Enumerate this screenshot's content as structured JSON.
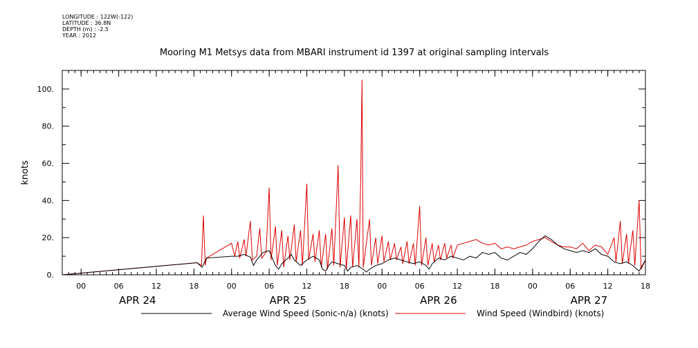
{
  "meta": {
    "longitude": "LONGITUDE : 122W(-122)",
    "latitude": "LATITUDE : 36.8N",
    "depth": "DEPTH (m) : -2.5",
    "year": "YEAR : 2012"
  },
  "chart_data": {
    "type": "line",
    "title": "Mooring M1 Metsys data from MBARI instrument id 1397 at original sampling intervals",
    "ylabel": "knots",
    "xlabel": "",
    "x_units": "hours since APR 24 00:00 (2012)",
    "xlim": [
      -3,
      90
    ],
    "ylim": [
      0,
      110
    ],
    "y_ticks": [
      0,
      20,
      40,
      60,
      80,
      100
    ],
    "y_tick_labels": [
      "0.",
      "20.",
      "40.",
      "60.",
      "80.",
      "100."
    ],
    "x_ticks": [
      0,
      6,
      12,
      18,
      24,
      30,
      36,
      42,
      48,
      54,
      60,
      66,
      72,
      78,
      84,
      90
    ],
    "x_tick_labels": [
      "00",
      "06",
      "12",
      "18",
      "00",
      "06",
      "12",
      "18",
      "00",
      "06",
      "12",
      "18",
      "00",
      "06",
      "12",
      "18"
    ],
    "day_labels": [
      {
        "x": 9,
        "label": "APR 24"
      },
      {
        "x": 33,
        "label": "APR 25"
      },
      {
        "x": 57,
        "label": "APR 26"
      },
      {
        "x": 81,
        "label": "APR 27"
      }
    ],
    "legend_placement": "bottom",
    "series": [
      {
        "name": "Average Wind Speed (Sonic-n/a) (knots)",
        "color": "#000000",
        "points": [
          [
            -3,
            0
          ],
          [
            18.5,
            6.5
          ],
          [
            19.3,
            4
          ],
          [
            20,
            9
          ],
          [
            24,
            10
          ],
          [
            25,
            10
          ],
          [
            26,
            11
          ],
          [
            27,
            9.5
          ],
          [
            27.5,
            5
          ],
          [
            28,
            8
          ],
          [
            29,
            12
          ],
          [
            30,
            13
          ],
          [
            30.5,
            9
          ],
          [
            31,
            5
          ],
          [
            31.5,
            3
          ],
          [
            32,
            6
          ],
          [
            33,
            9
          ],
          [
            33.5,
            11
          ],
          [
            34,
            8
          ],
          [
            35,
            5
          ],
          [
            36,
            8
          ],
          [
            37,
            10
          ],
          [
            38,
            8
          ],
          [
            38.5,
            3
          ],
          [
            39,
            2
          ],
          [
            39.5,
            5
          ],
          [
            40,
            7
          ],
          [
            41,
            6
          ],
          [
            42,
            5
          ],
          [
            42.5,
            2
          ],
          [
            43,
            4
          ],
          [
            44,
            5
          ],
          [
            45,
            3
          ],
          [
            45.5,
            1.5
          ],
          [
            46,
            3
          ],
          [
            47,
            5
          ],
          [
            48,
            6
          ],
          [
            49,
            8
          ],
          [
            50,
            9
          ],
          [
            51,
            8
          ],
          [
            52,
            7
          ],
          [
            53,
            6
          ],
          [
            54,
            7
          ],
          [
            55,
            5
          ],
          [
            55.5,
            3
          ],
          [
            56,
            6
          ],
          [
            57,
            9
          ],
          [
            58,
            8
          ],
          [
            59,
            10
          ],
          [
            60,
            9
          ],
          [
            61,
            8
          ],
          [
            62,
            10
          ],
          [
            63,
            9
          ],
          [
            64,
            12
          ],
          [
            65,
            11
          ],
          [
            66,
            12
          ],
          [
            67,
            9
          ],
          [
            68,
            8
          ],
          [
            69,
            10
          ],
          [
            70,
            12
          ],
          [
            71,
            11
          ],
          [
            72,
            14
          ],
          [
            73,
            18
          ],
          [
            74,
            21
          ],
          [
            75,
            19
          ],
          [
            76,
            16
          ],
          [
            77,
            14
          ],
          [
            78,
            13
          ],
          [
            79,
            12
          ],
          [
            80,
            13
          ],
          [
            81,
            12
          ],
          [
            82,
            14
          ],
          [
            83,
            11
          ],
          [
            84,
            10
          ],
          [
            85,
            7
          ],
          [
            86,
            6
          ],
          [
            87,
            7
          ],
          [
            88,
            5
          ],
          [
            89,
            2
          ],
          [
            90,
            8
          ]
        ]
      },
      {
        "name": "Wind Speed (Windbird) (knots)",
        "color": "#dd0000",
        "points": [
          [
            -3,
            0
          ],
          [
            18.5,
            6.5
          ],
          [
            19.2,
            5
          ],
          [
            19.5,
            32
          ],
          [
            19.8,
            5
          ],
          [
            20,
            9
          ],
          [
            24,
            17
          ],
          [
            24.5,
            10
          ],
          [
            25,
            18
          ],
          [
            25.3,
            9
          ],
          [
            26,
            19
          ],
          [
            26.3,
            10
          ],
          [
            27,
            29
          ],
          [
            27.3,
            8
          ],
          [
            28,
            10
          ],
          [
            28.5,
            25
          ],
          [
            28.8,
            9
          ],
          [
            29.5,
            12
          ],
          [
            30,
            47
          ],
          [
            30.3,
            8
          ],
          [
            31,
            26
          ],
          [
            31.3,
            5
          ],
          [
            32,
            24
          ],
          [
            32.3,
            4
          ],
          [
            33,
            21
          ],
          [
            33.3,
            8
          ],
          [
            34,
            27
          ],
          [
            34.3,
            7
          ],
          [
            35,
            24
          ],
          [
            35.3,
            5
          ],
          [
            36,
            49
          ],
          [
            36.3,
            8
          ],
          [
            37,
            22
          ],
          [
            37.3,
            7
          ],
          [
            38,
            24
          ],
          [
            38.3,
            4
          ],
          [
            39,
            22
          ],
          [
            39.3,
            3
          ],
          [
            40,
            25
          ],
          [
            40.3,
            5
          ],
          [
            41,
            59
          ],
          [
            41.3,
            4
          ],
          [
            42,
            31
          ],
          [
            42.3,
            3
          ],
          [
            43,
            32
          ],
          [
            43.3,
            4
          ],
          [
            44,
            30
          ],
          [
            44.3,
            4
          ],
          [
            44.6,
            53
          ],
          [
            44.8,
            105
          ],
          [
            45,
            4
          ],
          [
            46,
            30
          ],
          [
            46.3,
            5
          ],
          [
            47,
            20
          ],
          [
            47.3,
            6
          ],
          [
            48,
            21
          ],
          [
            48.3,
            7
          ],
          [
            49,
            18
          ],
          [
            49.3,
            8
          ],
          [
            50,
            17
          ],
          [
            50.3,
            8
          ],
          [
            51,
            15
          ],
          [
            51.3,
            6
          ],
          [
            52,
            18
          ],
          [
            52.3,
            6
          ],
          [
            53,
            17
          ],
          [
            53.3,
            5
          ],
          [
            54,
            37
          ],
          [
            54.3,
            5
          ],
          [
            55,
            20
          ],
          [
            55.3,
            5
          ],
          [
            56,
            17
          ],
          [
            56.3,
            7
          ],
          [
            57,
            16
          ],
          [
            57.3,
            8
          ],
          [
            58,
            17
          ],
          [
            58.3,
            9
          ],
          [
            59,
            16
          ],
          [
            59.3,
            9
          ],
          [
            60,
            16
          ],
          [
            61,
            17
          ],
          [
            62,
            18
          ],
          [
            63,
            19
          ],
          [
            64,
            17
          ],
          [
            65,
            16
          ],
          [
            66,
            17
          ],
          [
            67,
            14
          ],
          [
            68,
            15
          ],
          [
            69,
            14
          ],
          [
            70,
            15
          ],
          [
            71,
            16
          ],
          [
            72,
            18
          ],
          [
            73,
            19
          ],
          [
            74,
            20
          ],
          [
            75,
            18
          ],
          [
            76,
            16
          ],
          [
            77,
            15
          ],
          [
            78,
            15
          ],
          [
            79,
            14
          ],
          [
            80,
            17
          ],
          [
            81,
            13
          ],
          [
            82,
            16
          ],
          [
            83,
            15
          ],
          [
            84,
            11
          ],
          [
            85,
            20
          ],
          [
            85.3,
            7
          ],
          [
            86,
            29
          ],
          [
            86.3,
            6
          ],
          [
            87,
            22
          ],
          [
            87.3,
            6
          ],
          [
            88,
            24
          ],
          [
            88.3,
            5
          ],
          [
            89,
            40
          ],
          [
            89.3,
            3
          ],
          [
            90,
            8
          ]
        ]
      }
    ]
  }
}
